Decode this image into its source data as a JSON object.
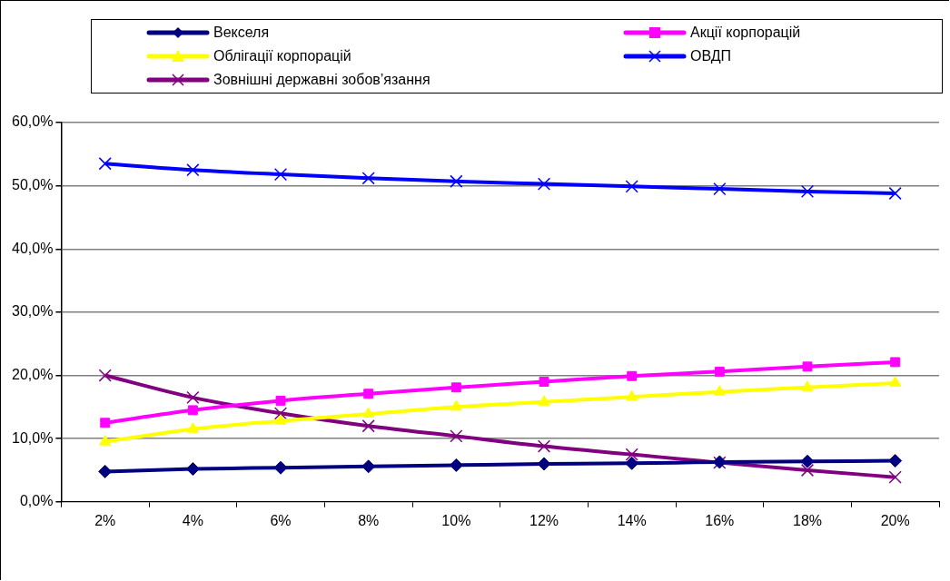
{
  "chart_data": {
    "type": "line",
    "categories": [
      "2%",
      "4%",
      "6%",
      "8%",
      "10%",
      "12%",
      "14%",
      "16%",
      "18%",
      "20%"
    ],
    "ylim": [
      0,
      60
    ],
    "yticks": [
      {
        "value": 0,
        "label": "0,0%"
      },
      {
        "value": 10,
        "label": "10,0%"
      },
      {
        "value": 20,
        "label": "20,0%"
      },
      {
        "value": 30,
        "label": "30,0%"
      },
      {
        "value": 40,
        "label": "40,0%"
      },
      {
        "value": 50,
        "label": "50,0%"
      },
      {
        "value": 60,
        "label": "60,0%"
      }
    ],
    "grid": "y",
    "legend": "top",
    "series": [
      {
        "name": "Векселя",
        "color": "#000080",
        "marker": "diamond",
        "values": [
          4.8,
          5.2,
          5.4,
          5.6,
          5.8,
          6.0,
          6.1,
          6.3,
          6.4,
          6.5
        ]
      },
      {
        "name": "Акції корпорацій",
        "color": "#ff00ff",
        "marker": "square",
        "values": [
          12.5,
          14.5,
          16.0,
          17.1,
          18.1,
          19.0,
          19.9,
          20.6,
          21.4,
          22.1
        ]
      },
      {
        "name": "Облігації корпорацій",
        "color": "#ffff00",
        "marker": "triangle",
        "values": [
          9.5,
          11.5,
          12.8,
          13.9,
          15.0,
          15.8,
          16.6,
          17.4,
          18.1,
          18.8
        ]
      },
      {
        "name": "ОВДП",
        "color": "#0000ff",
        "marker": "cross",
        "values": [
          53.5,
          52.5,
          51.8,
          51.2,
          50.7,
          50.3,
          49.9,
          49.5,
          49.1,
          48.8
        ]
      },
      {
        "name": "Зовнішні державні зобов’язання",
        "color": "#800080",
        "marker": "cross",
        "values": [
          20.0,
          16.5,
          14.0,
          12.0,
          10.4,
          8.8,
          7.5,
          6.2,
          5.0,
          3.9
        ]
      }
    ]
  }
}
